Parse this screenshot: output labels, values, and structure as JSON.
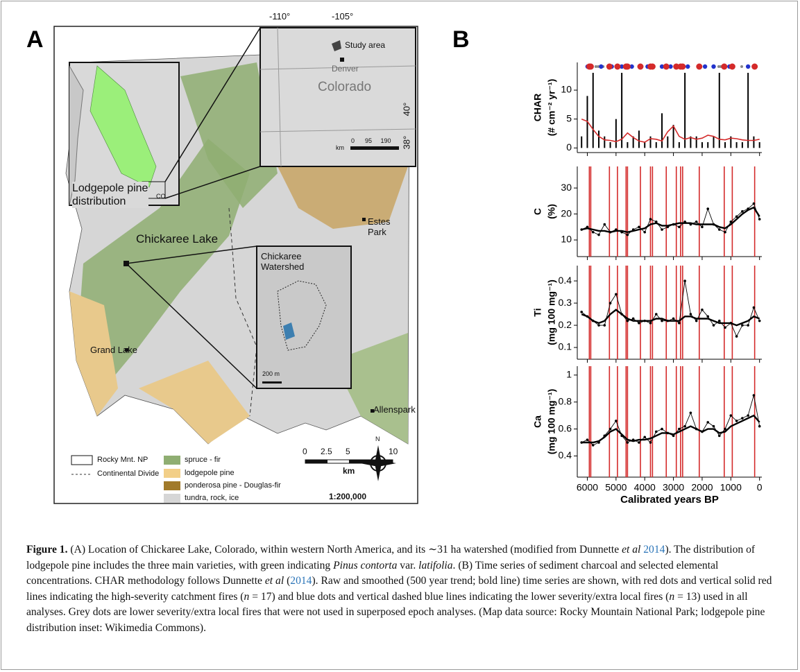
{
  "panels": {
    "a": "A",
    "b": "B"
  },
  "map": {
    "lon_west": "-110°",
    "lon_east": "-105°",
    "lat_north": "40°",
    "lat_south": "38°",
    "study_area": "Study area",
    "denver": "Denver",
    "colorado": "Colorado",
    "inset_scale": "0      95     190",
    "inset_scale_unit": "km",
    "na_label": "Lodgepole pine distribution",
    "co": "CO",
    "estes_park": "Estes Park",
    "chickaree_lake": "Chickaree Lake",
    "watershed": "Chickaree Watershed",
    "watershed_scale": "200 m",
    "grand_lake": "Grand Lake",
    "allenspark": "Allenspark",
    "north": "N",
    "legend": [
      "Rocky Mnt. NP",
      "Continental Divide",
      "spruce - fir",
      "lodgepole pine",
      "ponderosa pine - Douglas-fir",
      "tundra, rock, ice"
    ],
    "scale_ticks": [
      "0",
      "2.5",
      "5",
      "10"
    ],
    "scale_unit": "km",
    "scale_ratio": "1:200,000"
  },
  "chart_data": [
    {
      "type": "line",
      "ylabel": [
        "CHAR",
        "(# cm⁻² yr⁻¹)"
      ],
      "x": [
        6200,
        6000,
        5800,
        5600,
        5400,
        5200,
        5000,
        4800,
        4600,
        4400,
        4200,
        4000,
        3800,
        3600,
        3400,
        3200,
        3000,
        2800,
        2600,
        2400,
        2200,
        2000,
        1800,
        1600,
        1400,
        1200,
        1000,
        800,
        600,
        400,
        200,
        0
      ],
      "series": [
        {
          "type": "bar",
          "color": "#000000",
          "values": [
            2,
            9,
            13,
            3,
            2,
            1,
            5,
            13,
            1,
            2,
            3,
            1,
            2,
            1,
            6,
            2,
            4,
            1,
            13,
            2,
            2,
            1,
            1,
            2,
            13,
            1,
            2,
            1,
            1,
            13,
            2,
            1
          ]
        },
        {
          "type": "line",
          "color": "#d42a2a",
          "values": [
            5,
            4.6,
            3.2,
            2,
            1.4,
            1.3,
            1.1,
            1.5,
            2.6,
            1.8,
            1.2,
            1,
            1.6,
            1.5,
            1.2,
            2.8,
            3.8,
            2,
            1.5,
            1.8,
            1.5,
            1.7,
            2.2,
            2,
            1.5,
            1.4,
            1.7,
            1.6,
            1.4,
            1.3,
            1.3,
            1.5
          ]
        }
      ],
      "high_severity_fires": {
        "color": "#d42a2a",
        "x": [
          5930,
          5880,
          5230,
          4950,
          4650,
          4600,
          4150,
          3800,
          3730,
          3250,
          2900,
          2750,
          2680,
          2100,
          1230,
          950,
          170
        ]
      },
      "low_severity_fires": {
        "color": "#2233cc",
        "x": [
          5990,
          5520,
          5150,
          4800,
          4450,
          3900,
          3400,
          3100,
          2500,
          1900,
          1600,
          1050,
          400
        ]
      },
      "unused_fires": {
        "color": "#888888",
        "x": [
          5700,
          5620,
          5450,
          1420,
          1350,
          620
        ]
      },
      "xlim": [
        6350,
        -80
      ],
      "ylim": [
        -0.8,
        14.8
      ],
      "yticks": [
        0,
        5,
        10
      ]
    },
    {
      "type": "line",
      "ylabel": [
        "C",
        "(%)"
      ],
      "x": [
        6200,
        6000,
        5800,
        5600,
        5400,
        5200,
        5000,
        4800,
        4600,
        4400,
        4200,
        4000,
        3800,
        3600,
        3400,
        3200,
        3000,
        2800,
        2600,
        2400,
        2200,
        2000,
        1800,
        1600,
        1400,
        1200,
        1000,
        800,
        600,
        400,
        200,
        0
      ],
      "series": [
        {
          "type": "line",
          "color": "#000000",
          "values": [
            14,
            15,
            13,
            12,
            16,
            13,
            14,
            13,
            12,
            14,
            15,
            13,
            18,
            17,
            14,
            15,
            16,
            15,
            17,
            16,
            17,
            15,
            22,
            16,
            14,
            13,
            17,
            19,
            21,
            22,
            24,
            18
          ]
        },
        {
          "type": "line",
          "color": "#000000",
          "values": [
            14,
            14.5,
            14,
            13.5,
            13.5,
            13,
            13.5,
            13.5,
            13,
            13.5,
            14,
            14.5,
            16,
            16.5,
            15.5,
            15.5,
            16,
            16.5,
            16.5,
            16.5,
            16,
            16,
            16,
            16,
            15,
            14.5,
            16,
            18,
            20,
            21.5,
            22.5,
            19
          ]
        }
      ],
      "xlim": [
        6350,
        -80
      ],
      "ylim": [
        3.6,
        38.3
      ],
      "yticks": [
        10,
        20,
        30
      ]
    },
    {
      "type": "line",
      "ylabel": [
        "Ti",
        "(mg 100 mg⁻¹)"
      ],
      "x": [
        6200,
        6000,
        5800,
        5600,
        5400,
        5200,
        5000,
        4800,
        4600,
        4400,
        4200,
        4000,
        3800,
        3600,
        3400,
        3200,
        3000,
        2800,
        2600,
        2400,
        2200,
        2000,
        1800,
        1600,
        1400,
        1200,
        1000,
        800,
        600,
        400,
        200,
        0
      ],
      "series": [
        {
          "type": "line",
          "color": "#000000",
          "values": [
            0.26,
            0.24,
            0.22,
            0.2,
            0.2,
            0.3,
            0.34,
            0.25,
            0.22,
            0.23,
            0.21,
            0.22,
            0.21,
            0.25,
            0.22,
            0.22,
            0.23,
            0.21,
            0.4,
            0.25,
            0.22,
            0.27,
            0.24,
            0.2,
            0.22,
            0.19,
            0.21,
            0.15,
            0.2,
            0.2,
            0.28,
            0.22
          ]
        },
        {
          "type": "line",
          "color": "#000000",
          "values": [
            0.25,
            0.24,
            0.22,
            0.21,
            0.22,
            0.25,
            0.27,
            0.25,
            0.23,
            0.22,
            0.22,
            0.22,
            0.22,
            0.23,
            0.23,
            0.22,
            0.22,
            0.22,
            0.24,
            0.24,
            0.23,
            0.23,
            0.23,
            0.22,
            0.21,
            0.21,
            0.21,
            0.2,
            0.21,
            0.22,
            0.24,
            0.23
          ]
        }
      ],
      "xlim": [
        6350,
        -80
      ],
      "ylim": [
        0.047,
        0.469
      ],
      "yticks": [
        0.1,
        0.2,
        0.3,
        0.4
      ]
    },
    {
      "type": "line",
      "ylabel": [
        "Ca",
        "(mg 100 mg⁻¹)"
      ],
      "xlabel": "Calibrated years BP",
      "x": [
        6200,
        6000,
        5800,
        5600,
        5400,
        5200,
        5000,
        4800,
        4600,
        4400,
        4200,
        4000,
        3800,
        3600,
        3400,
        3200,
        3000,
        2800,
        2600,
        2400,
        2200,
        2000,
        1800,
        1600,
        1400,
        1200,
        1000,
        800,
        600,
        400,
        200,
        0
      ],
      "series": [
        {
          "type": "line",
          "color": "#000000",
          "values": [
            0.5,
            0.52,
            0.48,
            0.5,
            0.55,
            0.6,
            0.66,
            0.55,
            0.5,
            0.52,
            0.5,
            0.54,
            0.5,
            0.58,
            0.6,
            0.57,
            0.55,
            0.6,
            0.62,
            0.72,
            0.6,
            0.58,
            0.65,
            0.62,
            0.55,
            0.6,
            0.7,
            0.66,
            0.68,
            0.7,
            0.85,
            0.62
          ]
        },
        {
          "type": "line",
          "color": "#000000",
          "values": [
            0.5,
            0.5,
            0.5,
            0.51,
            0.54,
            0.58,
            0.6,
            0.56,
            0.52,
            0.51,
            0.52,
            0.52,
            0.53,
            0.55,
            0.57,
            0.57,
            0.56,
            0.58,
            0.6,
            0.62,
            0.6,
            0.58,
            0.6,
            0.6,
            0.57,
            0.58,
            0.62,
            0.64,
            0.66,
            0.68,
            0.7,
            0.65
          ]
        }
      ],
      "xlim": [
        6350,
        -80
      ],
      "ylim": [
        0.243,
        1.066
      ],
      "yticks": [
        0.4,
        0.6,
        0.8,
        1
      ],
      "xticks": [
        6000,
        5000,
        4000,
        3000,
        2000,
        1000,
        0
      ]
    }
  ],
  "caption": [
    "Figure 1.",
    " (A) Location of Chickaree Lake, Colorado, within western North America, and its ∼31 ha watershed (modified from Dunnette ",
    "et al",
    " 2014",
    "). The distribution of lodgepole pine includes the three main varieties, with green indicating ",
    "Pinus contorta",
    " var. ",
    "latifolia",
    ". (B) Time series of sediment charcoal and selected elemental concentrations. CHAR methodology follows Dunnette ",
    "et al",
    " (",
    "2014",
    "). Raw and smoothed (500 year trend; bold line) time series are shown, with red dots and vertical solid red lines indicating the high-severity catchment fires (",
    "n",
    " = 17) and blue dots and vertical dashed blue lines indicating the lower severity/extra local fires (",
    "n",
    " = 13) used in all analyses. Grey dots are lower severity/extra local fires that were not used in superposed epoch analyses. (Map data source: Rocky Mountain National Park; lodgepole pine distribution inset: Wikimedia Commons)."
  ]
}
